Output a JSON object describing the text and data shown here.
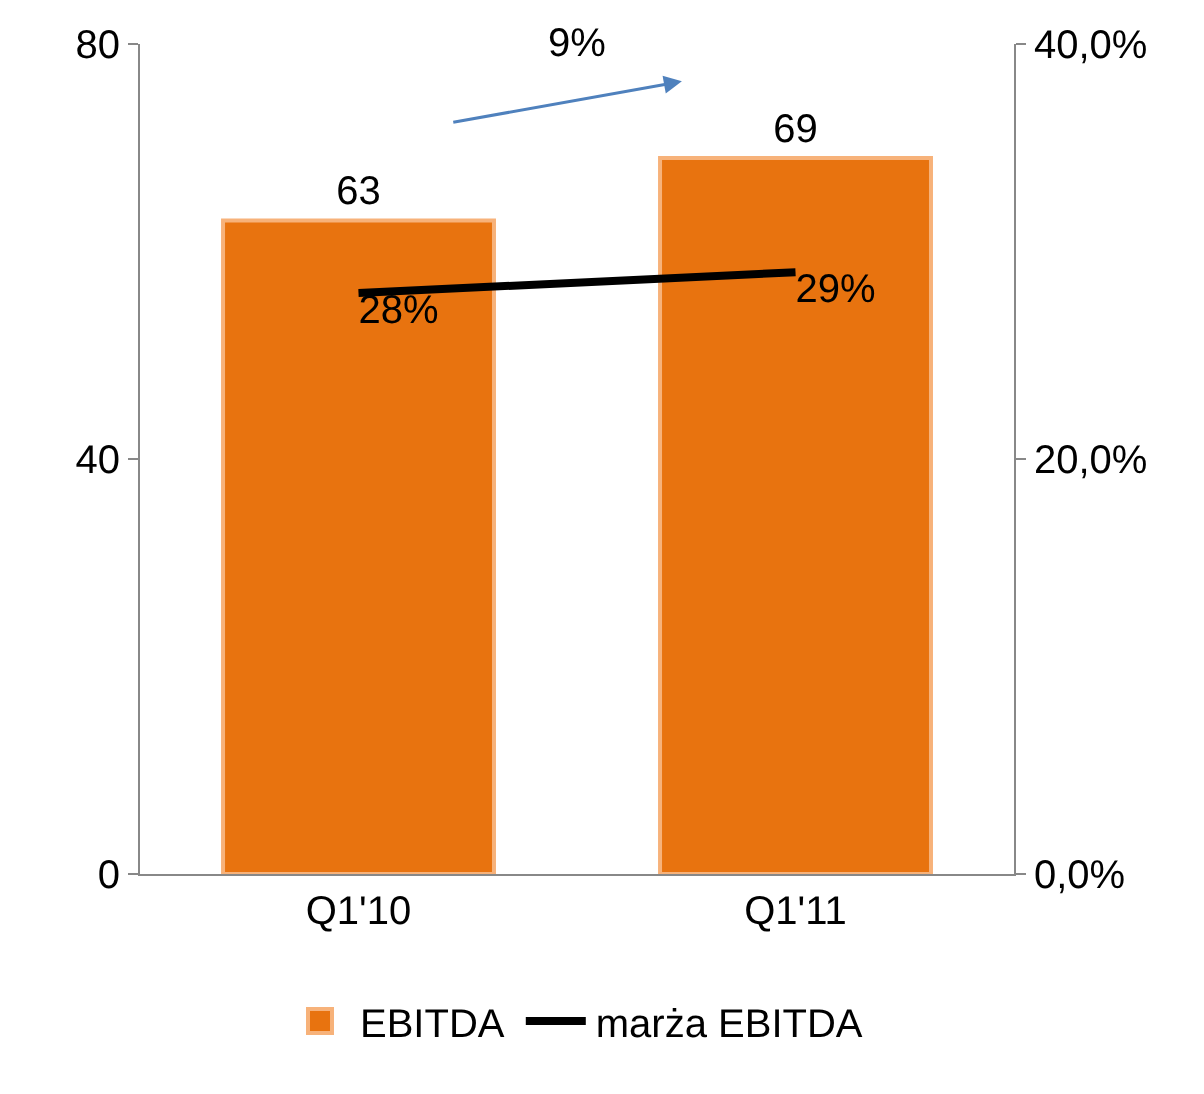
{
  "chart_data": {
    "type": "bar",
    "categories": [
      "Q1'10",
      "Q1'11"
    ],
    "series": [
      {
        "name": "EBITDA",
        "color": "#e8730f",
        "values": [
          63,
          69
        ],
        "value_labels": [
          "63",
          "69"
        ]
      },
      {
        "name": "marża EBITDA",
        "type": "line",
        "axis": "y2",
        "color": "#000000",
        "values": [
          28,
          29
        ],
        "value_labels": [
          "28%",
          "29%"
        ]
      }
    ],
    "ylim": [
      0,
      80
    ],
    "yticks": [
      0,
      40,
      80
    ],
    "y2lim": [
      0,
      40
    ],
    "y2ticks": [
      {
        "value": 0,
        "label": "0,0%"
      },
      {
        "value": 20,
        "label": "20,0%"
      },
      {
        "value": 40,
        "label": "40,0%"
      }
    ],
    "annotations": [
      "9%"
    ],
    "legend": "bottom",
    "marker": "none",
    "line_style": "solid"
  }
}
